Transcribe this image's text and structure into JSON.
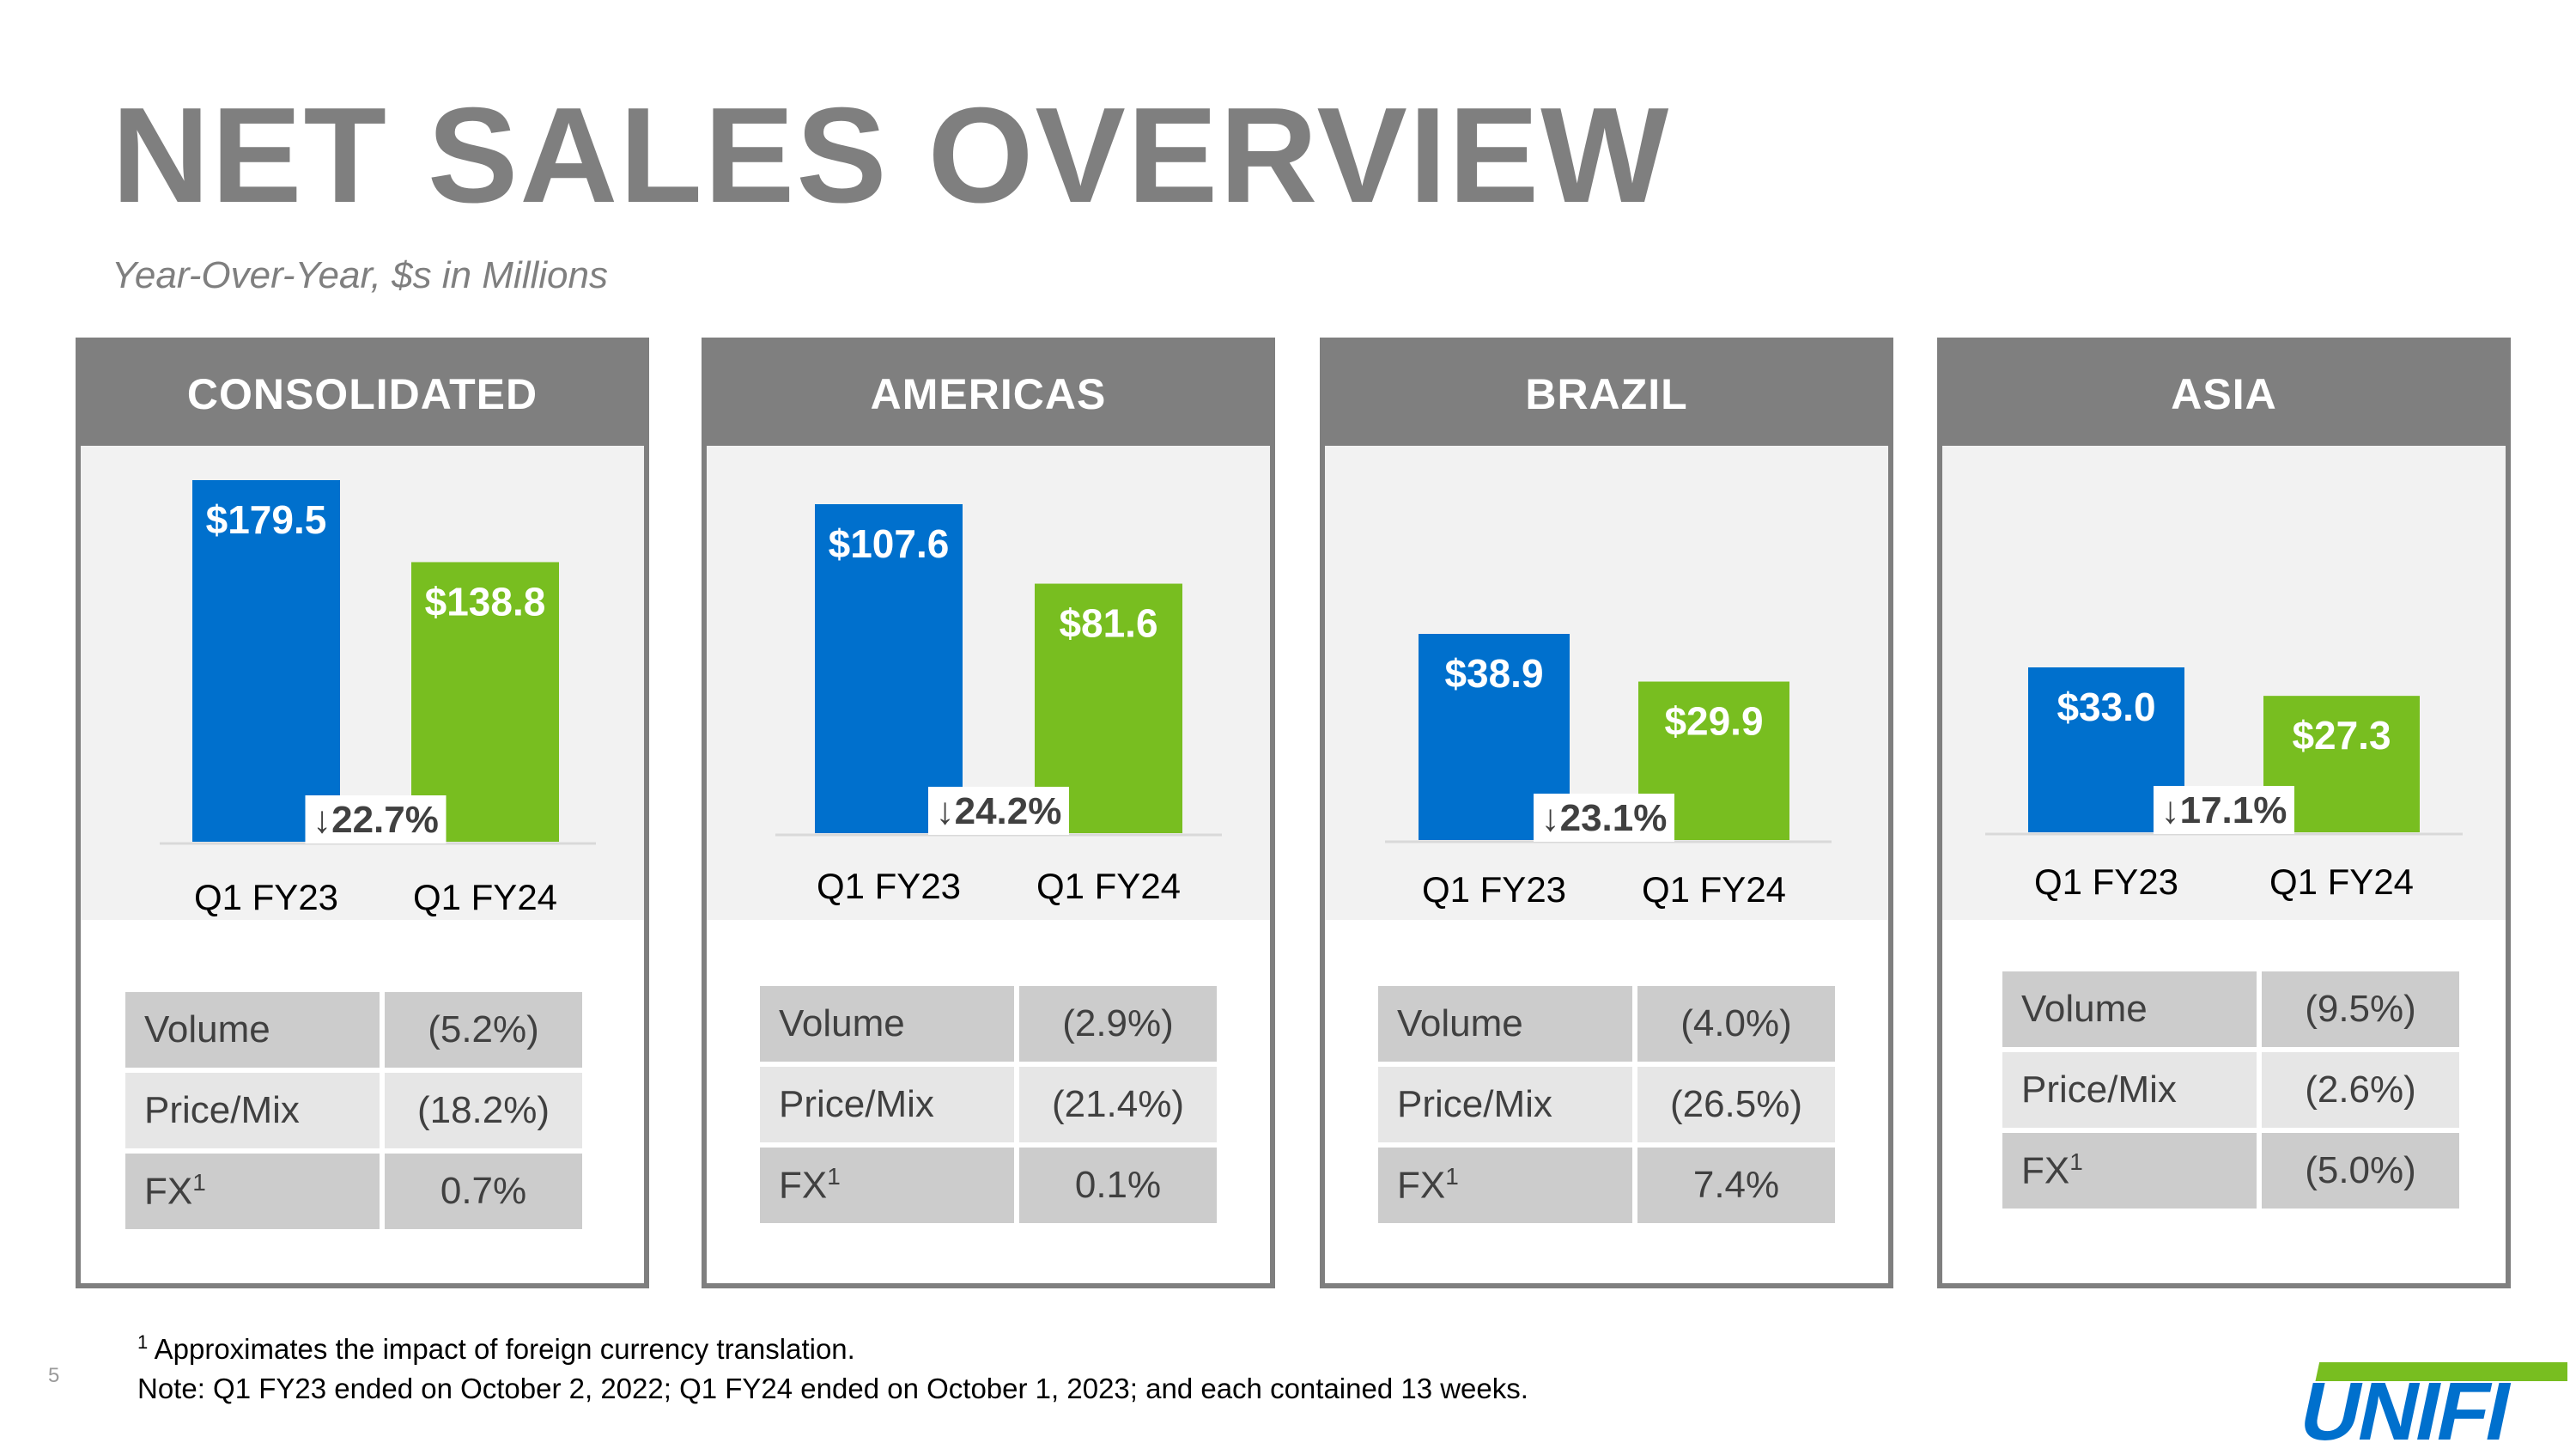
{
  "title": "NET SALES OVERVIEW",
  "subtitle": "Year-Over-Year, $s in Millions",
  "colors": {
    "fy23": "#0070cd",
    "fy24": "#78be20",
    "header": "#7f7f7f",
    "chart_bg": "#f2f2f2"
  },
  "panels": [
    {
      "title": "CONSOLIDATED",
      "stats": [
        {
          "label": "Volume",
          "sup": "",
          "value": "(5.2%)"
        },
        {
          "label": "Price/Mix",
          "sup": "",
          "value": "(18.2%)"
        },
        {
          "label": "FX",
          "sup": "1",
          "value": "0.7%"
        }
      ]
    },
    {
      "title": "AMERICAS",
      "stats": [
        {
          "label": "Volume",
          "sup": "",
          "value": "(2.9%)"
        },
        {
          "label": "Price/Mix",
          "sup": "",
          "value": "(21.4%)"
        },
        {
          "label": "FX",
          "sup": "1",
          "value": "0.1%"
        }
      ]
    },
    {
      "title": "BRAZIL",
      "stats": [
        {
          "label": "Volume",
          "sup": "",
          "value": "(4.0%)"
        },
        {
          "label": "Price/Mix",
          "sup": "",
          "value": "(26.5%)"
        },
        {
          "label": "FX",
          "sup": "1",
          "value": "7.4%"
        }
      ]
    },
    {
      "title": "ASIA",
      "stats": [
        {
          "label": "Volume",
          "sup": "",
          "value": "(9.5%)"
        },
        {
          "label": "Price/Mix",
          "sup": "",
          "value": "(2.6%)"
        },
        {
          "label": "FX",
          "sup": "1",
          "value": "(5.0%)"
        }
      ]
    }
  ],
  "chart_data": [
    {
      "type": "bar",
      "title": "CONSOLIDATED",
      "categories": [
        "Q1 FY23",
        "Q1 FY24"
      ],
      "values": [
        179.5,
        138.8
      ],
      "value_labels": [
        "$179.5",
        "$138.8"
      ],
      "change": "↓22.7%",
      "unit": "$ millions"
    },
    {
      "type": "bar",
      "title": "AMERICAS",
      "categories": [
        "Q1 FY23",
        "Q1 FY24"
      ],
      "values": [
        107.6,
        81.6
      ],
      "value_labels": [
        "$107.6",
        "$81.6"
      ],
      "change": "↓24.2%",
      "unit": "$ millions"
    },
    {
      "type": "bar",
      "title": "BRAZIL",
      "categories": [
        "Q1 FY23",
        "Q1 FY24"
      ],
      "values": [
        38.9,
        29.9
      ],
      "value_labels": [
        "$38.9",
        "$29.9"
      ],
      "change": "↓23.1%",
      "unit": "$ millions"
    },
    {
      "type": "bar",
      "title": "ASIA",
      "categories": [
        "Q1 FY23",
        "Q1 FY24"
      ],
      "values": [
        33.0,
        27.3
      ],
      "value_labels": [
        "$33.0",
        "$27.3"
      ],
      "change": "↓17.1%",
      "unit": "$ millions"
    }
  ],
  "footnotes": {
    "note1_sup": "1",
    "note1": "Approximates the impact of foreign currency translation.",
    "note2": "Note: Q1 FY23 ended on October 2, 2022; Q1 FY24 ended on October 1, 2023; and each contained 13 weeks."
  },
  "page_number": "5",
  "logo_text": "UNIFI"
}
